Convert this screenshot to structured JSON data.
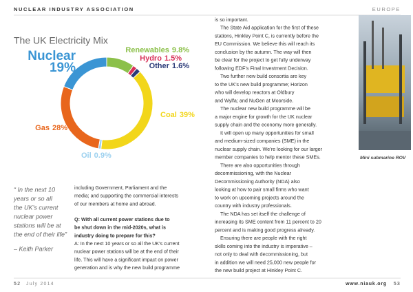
{
  "header": {
    "left": "NUCLEAR INDUSTRY ASSOCIATION",
    "right": "EUROPE"
  },
  "chart_data": {
    "type": "pie",
    "title": "The UK Electricity Mix",
    "categories": [
      "Renewables",
      "Hydro",
      "Other",
      "Coal",
      "Oil",
      "Gas",
      "Nuclear"
    ],
    "values": [
      9.8,
      1.5,
      1.6,
      39,
      0.9,
      28,
      19
    ],
    "value_labels": [
      "9.8%",
      "1.5%",
      "1.6%",
      "39%",
      "0.9%",
      "28%",
      "19%"
    ],
    "colors": [
      "#8cc04a",
      "#d8325a",
      "#2b3a78",
      "#f2d61a",
      "#9bd0ef",
      "#e8661c",
      "#3a95d4"
    ]
  },
  "quote": {
    "lines": [
      "“ In the next 10",
      "years or so all",
      "the UK’s current",
      "nuclear power",
      "stations will be at",
      "the end of their life”"
    ],
    "attribution": "– Keith Parker"
  },
  "left_body": {
    "intro": [
      "including Government, Parliament and the",
      "media; and supporting the commercial interests",
      "of our members at home and abroad."
    ],
    "question": [
      "Q: With all current power stations due to",
      "be shut down in the mid-2020s, what is",
      "industry doing to prepare for this?"
    ],
    "answer": [
      "A: In the next 10 years or so all the UK’s current",
      "nuclear power stations will be at the end of their",
      "life. This will have a significant impact on power",
      "generation and is why the new build programme"
    ]
  },
  "right_body": {
    "paragraphs": [
      [
        "is so important."
      ],
      [
        "The State Aid application for the first of these",
        "stations, Hinkley Point C, is currently before the",
        "EU Commission. We believe this will reach its",
        "conclusion by the autumn. The way will then",
        "be clear for the project to get fully underway",
        "following EDF’s Final Investment Decision."
      ],
      [
        "Two further new build consortia are key",
        "to the UK’s new build programme; Horizon",
        "who will develop reactors at Oldbury",
        "and Wylfa; and NuGen at Moorside."
      ],
      [
        "The nuclear new build programme will be",
        "a major engine for growth for the UK nuclear",
        "supply chain and the economy more generally."
      ],
      [
        "It will open up many opportunities for small",
        "and medium-sized companies (SME) in the",
        "nuclear supply chain. We’re looking for our larger",
        "member companies to help mentor these SMEs."
      ],
      [
        "There are also opportunities through",
        "decommissioning, with the Nuclear",
        "Decommissioning Authority (NDA) also",
        "looking at how to pair small firms who want",
        "to work on upcoming projects around the",
        "country with industry professionals."
      ],
      [
        "The NDA has set itself the challenge of",
        "increasing its SME content from 11 percent to 20",
        "percent and is making good progress already."
      ],
      [
        "Ensuring there are people with the right",
        "skills coming into the industry is imperative –",
        "not only to deal with decommissioning, but",
        "in addition we will need 25,000 new people for",
        "the new build project at Hinkley Point C."
      ]
    ]
  },
  "photo": {
    "caption": "Mini submarine ROV"
  },
  "footer": {
    "left_page": "52",
    "date": "July 2014",
    "url": "www.niauk.org",
    "right_page": "53"
  }
}
